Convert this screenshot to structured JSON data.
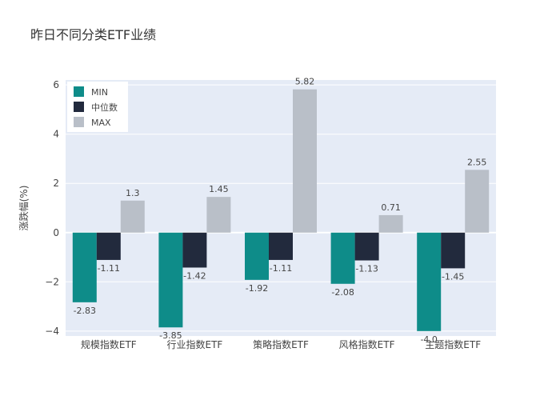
{
  "chart_data": {
    "type": "bar",
    "title": "昨日不同分类ETF业绩",
    "xlabel": "",
    "ylabel": "涨跌幅(%)",
    "categories": [
      "规模指数ETF",
      "行业指数ETF",
      "策略指数ETF",
      "风格指数ETF",
      "主题指数ETF"
    ],
    "series": [
      {
        "name": "MIN",
        "values": [
          -2.83,
          -3.85,
          -1.92,
          -2.08,
          -4.0
        ],
        "labels": [
          "-2.83",
          "-3.85",
          "-1.92",
          "-2.08",
          "-4.0"
        ]
      },
      {
        "name": "中位数",
        "values": [
          -1.11,
          -1.42,
          -1.11,
          -1.13,
          -1.45
        ],
        "labels": [
          "-1.11",
          "-1.42",
          "-1.11",
          "-1.13",
          "-1.45"
        ]
      },
      {
        "name": "MAX",
        "values": [
          1.3,
          1.45,
          5.82,
          0.71,
          2.55
        ],
        "labels": [
          "1.3",
          "1.45",
          "5.82",
          "0.71",
          "2.55"
        ]
      }
    ],
    "ylim": [
      -4.2,
      6.2
    ],
    "yticks": [
      -4,
      -2,
      0,
      2,
      4,
      6
    ],
    "ytick_labels": [
      "−4",
      "−2",
      "0",
      "2",
      "4",
      "6"
    ],
    "grid": true,
    "legend_position": "top-left",
    "colors": {
      "MIN": "#0e8c89",
      "中位数": "#222a3d",
      "MAX": "#b9bfc8",
      "plot_bg": "#e5ebf6",
      "grid": "#ffffff"
    }
  }
}
